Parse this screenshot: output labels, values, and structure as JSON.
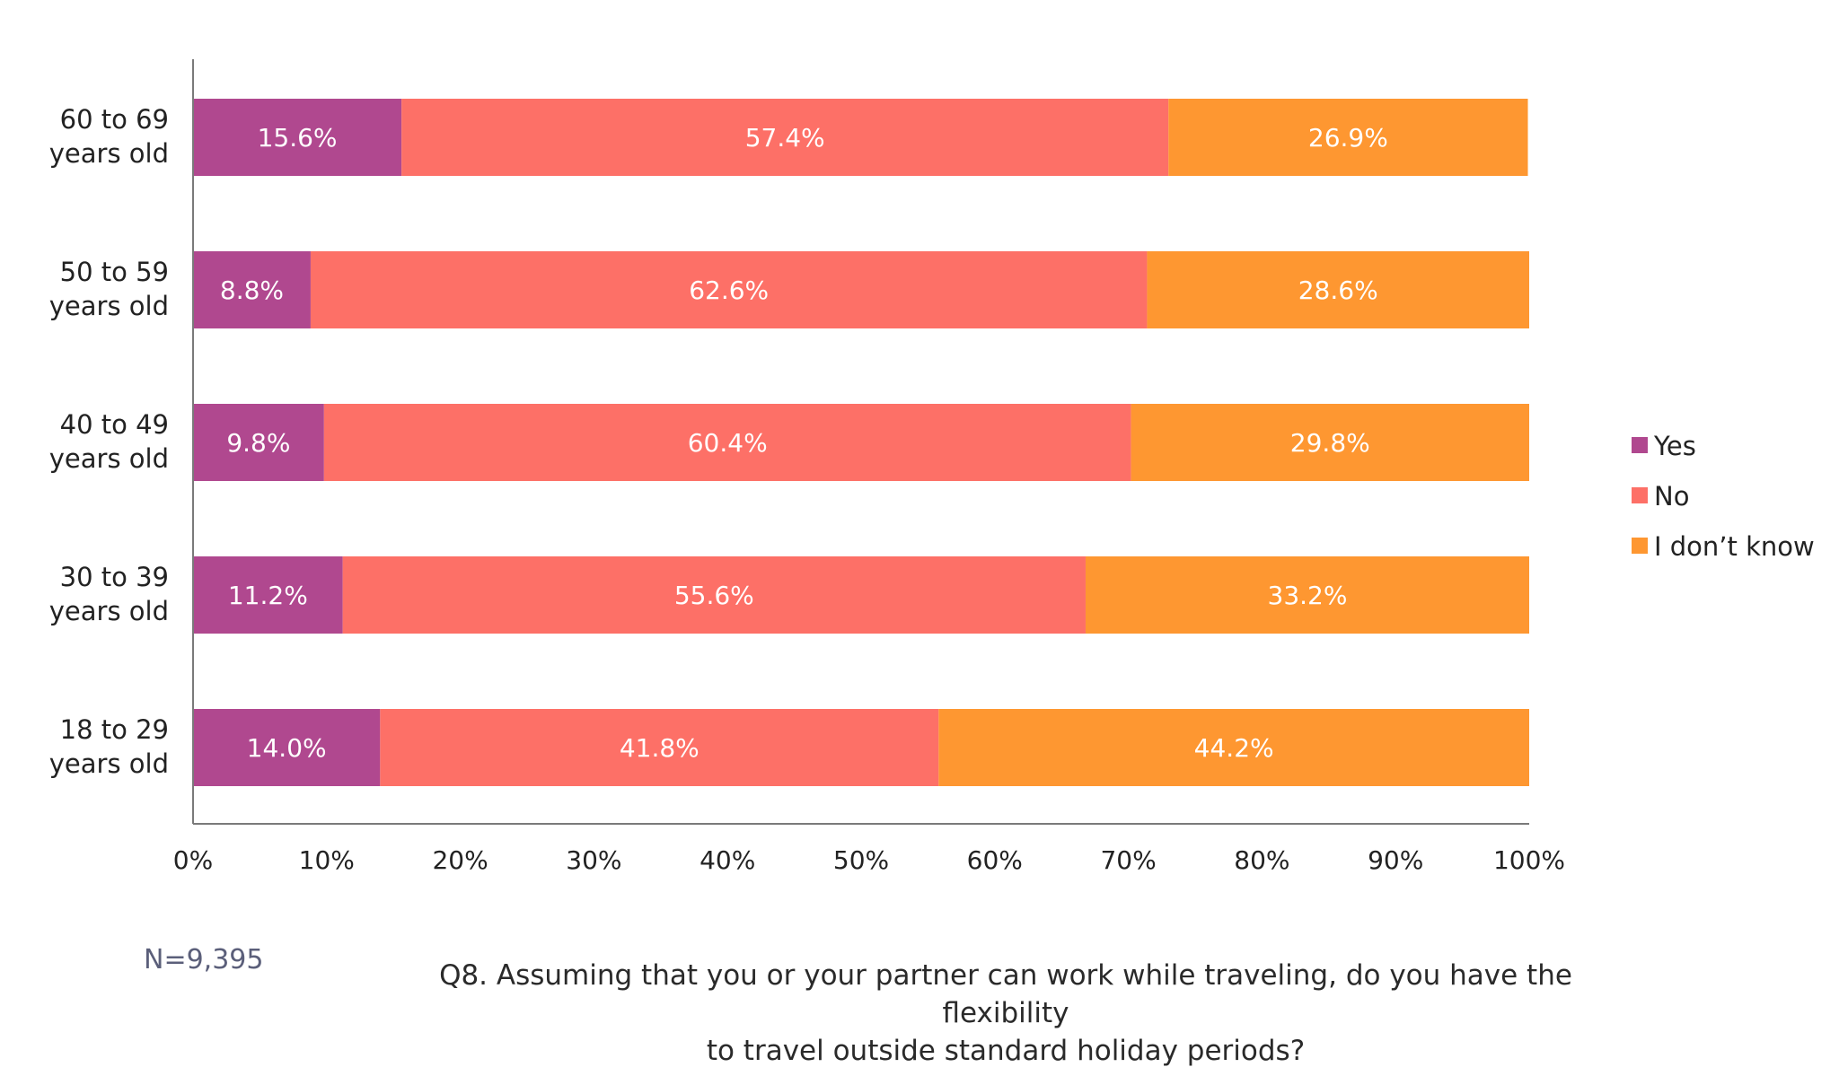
{
  "chart_data": {
    "type": "bar",
    "orientation": "horizontal",
    "stacked": true,
    "categories": [
      [
        "60 to 69",
        "years old"
      ],
      [
        "50 to 59",
        "years old"
      ],
      [
        "40 to 49",
        "years old"
      ],
      [
        "30 to 39",
        "years old"
      ],
      [
        "18 to 29",
        "years old"
      ]
    ],
    "series": [
      {
        "name": "Yes",
        "color": "#b0488f",
        "values": [
          15.6,
          8.8,
          9.8,
          11.2,
          14.0
        ],
        "labels": [
          "15.6%",
          "8.8%",
          "9.8%",
          "11.2%",
          "14.0%"
        ]
      },
      {
        "name": "No",
        "color": "#fd7067",
        "values": [
          57.4,
          62.6,
          60.4,
          55.6,
          41.8
        ],
        "labels": [
          "57.4%",
          "62.6%",
          "60.4%",
          "55.6%",
          "41.8%"
        ]
      },
      {
        "name": "I don’t know",
        "color": "#fe9731",
        "values": [
          26.9,
          28.6,
          29.8,
          33.2,
          44.2
        ],
        "labels": [
          "26.9%",
          "28.6%",
          "29.8%",
          "33.2%",
          "44.2%"
        ]
      }
    ],
    "xlim": [
      0,
      100
    ],
    "xticks": [
      "0%",
      "10%",
      "20%",
      "30%",
      "40%",
      "50%",
      "60%",
      "70%",
      "80%",
      "90%",
      "100%"
    ],
    "grid": false,
    "legend_position": "right"
  },
  "footer": {
    "sample_size": "N=9,395",
    "question_line1": "Q8. Assuming that you or your partner can work while traveling, do you have the flexibility",
    "question_line2": "to travel outside standard holiday periods?"
  }
}
